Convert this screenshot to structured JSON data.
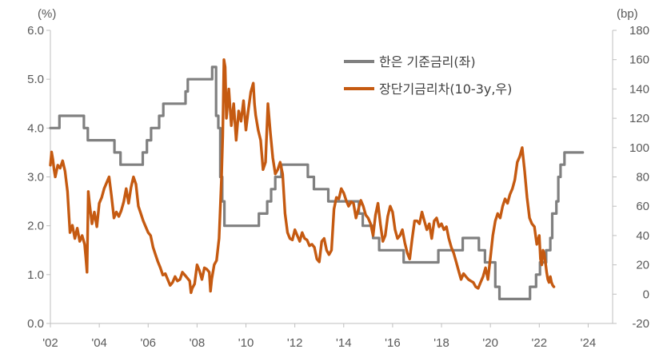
{
  "chart_data": {
    "type": "line",
    "y_left_unit": "(%)",
    "y_right_unit": "(bp)",
    "y_left_lim": [
      0.0,
      6.0
    ],
    "y_right_lim": [
      -20,
      180
    ],
    "y_left_ticks": [
      "0.0",
      "1.0",
      "2.0",
      "3.0",
      "4.0",
      "5.0",
      "6.0"
    ],
    "y_right_ticks": [
      "-20",
      "0",
      "20",
      "40",
      "60",
      "80",
      "100",
      "120",
      "140",
      "160",
      "180"
    ],
    "x_lim": [
      2002,
      2025
    ],
    "x_ticks": [
      {
        "year": 2002,
        "label": "'02"
      },
      {
        "year": 2004,
        "label": "'04"
      },
      {
        "year": 2006,
        "label": "'06"
      },
      {
        "year": 2008,
        "label": "'08"
      },
      {
        "year": 2010,
        "label": "'10"
      },
      {
        "year": 2012,
        "label": "'12"
      },
      {
        "year": 2014,
        "label": "'14"
      },
      {
        "year": 2016,
        "label": "'16"
      },
      {
        "year": 2018,
        "label": "'18"
      },
      {
        "year": 2020,
        "label": "'20"
      },
      {
        "year": 2022,
        "label": "'22"
      },
      {
        "year": 2024,
        "label": "'24"
      }
    ],
    "grid": false,
    "legend_position": "top-right",
    "series": [
      {
        "name": "한은 기준금리(좌)",
        "axis": "left",
        "color": "#808080",
        "step": true,
        "points": [
          [
            2002.0,
            4.0
          ],
          [
            2002.37,
            4.25
          ],
          [
            2003.37,
            4.0
          ],
          [
            2003.53,
            3.75
          ],
          [
            2004.62,
            3.5
          ],
          [
            2004.87,
            3.25
          ],
          [
            2005.78,
            3.5
          ],
          [
            2005.95,
            3.75
          ],
          [
            2006.12,
            4.0
          ],
          [
            2006.45,
            4.25
          ],
          [
            2006.62,
            4.5
          ],
          [
            2007.53,
            4.75
          ],
          [
            2007.62,
            5.0
          ],
          [
            2008.62,
            5.25
          ],
          [
            2008.78,
            4.25
          ],
          [
            2008.87,
            4.0
          ],
          [
            2008.95,
            3.0
          ],
          [
            2009.03,
            2.5
          ],
          [
            2009.12,
            2.0
          ],
          [
            2010.53,
            2.25
          ],
          [
            2010.87,
            2.5
          ],
          [
            2011.03,
            2.75
          ],
          [
            2011.2,
            3.0
          ],
          [
            2011.45,
            3.25
          ],
          [
            2012.53,
            3.0
          ],
          [
            2012.78,
            2.75
          ],
          [
            2013.37,
            2.5
          ],
          [
            2014.62,
            2.25
          ],
          [
            2014.78,
            2.0
          ],
          [
            2015.2,
            1.75
          ],
          [
            2015.45,
            1.5
          ],
          [
            2016.45,
            1.25
          ],
          [
            2017.87,
            1.5
          ],
          [
            2018.87,
            1.75
          ],
          [
            2019.53,
            1.5
          ],
          [
            2019.78,
            1.25
          ],
          [
            2020.2,
            0.75
          ],
          [
            2020.37,
            0.5
          ],
          [
            2021.62,
            0.75
          ],
          [
            2021.87,
            1.0
          ],
          [
            2022.03,
            1.25
          ],
          [
            2022.28,
            1.5
          ],
          [
            2022.45,
            1.75
          ],
          [
            2022.53,
            2.25
          ],
          [
            2022.7,
            2.5
          ],
          [
            2022.78,
            3.0
          ],
          [
            2022.87,
            3.25
          ],
          [
            2023.03,
            3.5
          ],
          [
            2023.78,
            3.5
          ]
        ]
      },
      {
        "name": "장단기금리차(10-3y,우)",
        "axis": "right",
        "color": "#C55A11",
        "step": false,
        "points": [
          [
            2002.0,
            88
          ],
          [
            2002.05,
            97
          ],
          [
            2002.1,
            92
          ],
          [
            2002.15,
            85
          ],
          [
            2002.2,
            80
          ],
          [
            2002.3,
            88
          ],
          [
            2002.4,
            86
          ],
          [
            2002.5,
            91
          ],
          [
            2002.6,
            84
          ],
          [
            2002.7,
            70
          ],
          [
            2002.8,
            42
          ],
          [
            2002.9,
            47
          ],
          [
            2003.0,
            38
          ],
          [
            2003.1,
            45
          ],
          [
            2003.2,
            36
          ],
          [
            2003.3,
            40
          ],
          [
            2003.4,
            34
          ],
          [
            2003.45,
            25
          ],
          [
            2003.5,
            15
          ],
          [
            2003.55,
            70
          ],
          [
            2003.6,
            62
          ],
          [
            2003.7,
            48
          ],
          [
            2003.8,
            56
          ],
          [
            2003.9,
            46
          ],
          [
            2004.0,
            62
          ],
          [
            2004.1,
            66
          ],
          [
            2004.2,
            72
          ],
          [
            2004.3,
            76
          ],
          [
            2004.4,
            80
          ],
          [
            2004.5,
            67
          ],
          [
            2004.6,
            52
          ],
          [
            2004.7,
            56
          ],
          [
            2004.8,
            53
          ],
          [
            2004.9,
            57
          ],
          [
            2005.0,
            63
          ],
          [
            2005.1,
            72
          ],
          [
            2005.2,
            62
          ],
          [
            2005.3,
            73
          ],
          [
            2005.4,
            80
          ],
          [
            2005.5,
            75
          ],
          [
            2005.6,
            60
          ],
          [
            2005.7,
            55
          ],
          [
            2005.8,
            50
          ],
          [
            2005.9,
            46
          ],
          [
            2006.0,
            42
          ],
          [
            2006.1,
            40
          ],
          [
            2006.2,
            32
          ],
          [
            2006.3,
            27
          ],
          [
            2006.4,
            22
          ],
          [
            2006.5,
            18
          ],
          [
            2006.6,
            13
          ],
          [
            2006.7,
            14
          ],
          [
            2006.8,
            10
          ],
          [
            2006.9,
            6
          ],
          [
            2007.0,
            8
          ],
          [
            2007.1,
            12
          ],
          [
            2007.2,
            9
          ],
          [
            2007.3,
            10
          ],
          [
            2007.4,
            15
          ],
          [
            2007.5,
            13
          ],
          [
            2007.6,
            11
          ],
          [
            2007.7,
            9
          ],
          [
            2007.75,
            1
          ],
          [
            2007.8,
            4
          ],
          [
            2007.9,
            7
          ],
          [
            2008.0,
            20
          ],
          [
            2008.1,
            16
          ],
          [
            2008.2,
            10
          ],
          [
            2008.3,
            18
          ],
          [
            2008.4,
            17
          ],
          [
            2008.5,
            15
          ],
          [
            2008.55,
            2
          ],
          [
            2008.6,
            10
          ],
          [
            2008.7,
            20
          ],
          [
            2008.8,
            23
          ],
          [
            2008.9,
            38
          ],
          [
            2009.0,
            80
          ],
          [
            2009.05,
            108
          ],
          [
            2009.1,
            160
          ],
          [
            2009.15,
            155
          ],
          [
            2009.2,
            120
          ],
          [
            2009.3,
            140
          ],
          [
            2009.4,
            115
          ],
          [
            2009.5,
            130
          ],
          [
            2009.6,
            105
          ],
          [
            2009.7,
            125
          ],
          [
            2009.8,
            118
          ],
          [
            2009.9,
            132
          ],
          [
            2010.0,
            112
          ],
          [
            2010.1,
            126
          ],
          [
            2010.2,
            138
          ],
          [
            2010.3,
            144
          ],
          [
            2010.35,
            130
          ],
          [
            2010.4,
            122
          ],
          [
            2010.5,
            112
          ],
          [
            2010.6,
            105
          ],
          [
            2010.7,
            85
          ],
          [
            2010.8,
            90
          ],
          [
            2010.9,
            130
          ],
          [
            2011.0,
            110
          ],
          [
            2011.1,
            93
          ],
          [
            2011.2,
            82
          ],
          [
            2011.3,
            85
          ],
          [
            2011.4,
            90
          ],
          [
            2011.5,
            82
          ],
          [
            2011.6,
            55
          ],
          [
            2011.7,
            42
          ],
          [
            2011.8,
            38
          ],
          [
            2011.9,
            37
          ],
          [
            2012.0,
            44
          ],
          [
            2012.1,
            40
          ],
          [
            2012.2,
            36
          ],
          [
            2012.3,
            42
          ],
          [
            2012.4,
            38
          ],
          [
            2012.5,
            37
          ],
          [
            2012.6,
            33
          ],
          [
            2012.7,
            34
          ],
          [
            2012.8,
            32
          ],
          [
            2012.9,
            24
          ],
          [
            2013.0,
            22
          ],
          [
            2013.1,
            36
          ],
          [
            2013.2,
            38
          ],
          [
            2013.3,
            30
          ],
          [
            2013.4,
            27
          ],
          [
            2013.5,
            30
          ],
          [
            2013.6,
            58
          ],
          [
            2013.7,
            66
          ],
          [
            2013.8,
            65
          ],
          [
            2013.9,
            72
          ],
          [
            2014.0,
            69
          ],
          [
            2014.1,
            64
          ],
          [
            2014.2,
            60
          ],
          [
            2014.3,
            63
          ],
          [
            2014.4,
            62
          ],
          [
            2014.5,
            52
          ],
          [
            2014.6,
            58
          ],
          [
            2014.7,
            64
          ],
          [
            2014.8,
            60
          ],
          [
            2014.9,
            54
          ],
          [
            2015.0,
            52
          ],
          [
            2015.1,
            48
          ],
          [
            2015.2,
            40
          ],
          [
            2015.3,
            54
          ],
          [
            2015.4,
            62
          ],
          [
            2015.5,
            48
          ],
          [
            2015.6,
            36
          ],
          [
            2015.7,
            40
          ],
          [
            2015.8,
            53
          ],
          [
            2015.9,
            60
          ],
          [
            2016.0,
            56
          ],
          [
            2016.1,
            44
          ],
          [
            2016.2,
            38
          ],
          [
            2016.3,
            40
          ],
          [
            2016.4,
            44
          ],
          [
            2016.5,
            35
          ],
          [
            2016.6,
            28
          ],
          [
            2016.7,
            24
          ],
          [
            2016.8,
            38
          ],
          [
            2016.9,
            50
          ],
          [
            2017.0,
            50
          ],
          [
            2017.1,
            48
          ],
          [
            2017.2,
            56
          ],
          [
            2017.3,
            50
          ],
          [
            2017.4,
            44
          ],
          [
            2017.5,
            48
          ],
          [
            2017.6,
            38
          ],
          [
            2017.7,
            50
          ],
          [
            2017.8,
            52
          ],
          [
            2017.9,
            46
          ],
          [
            2018.0,
            48
          ],
          [
            2018.1,
            44
          ],
          [
            2018.2,
            46
          ],
          [
            2018.3,
            38
          ],
          [
            2018.4,
            32
          ],
          [
            2018.5,
            28
          ],
          [
            2018.6,
            22
          ],
          [
            2018.7,
            16
          ],
          [
            2018.8,
            10
          ],
          [
            2018.9,
            14
          ],
          [
            2019.0,
            12
          ],
          [
            2019.1,
            10
          ],
          [
            2019.2,
            9
          ],
          [
            2019.3,
            8
          ],
          [
            2019.4,
            5
          ],
          [
            2019.5,
            4
          ],
          [
            2019.6,
            8
          ],
          [
            2019.7,
            12
          ],
          [
            2019.8,
            18
          ],
          [
            2019.9,
            10
          ],
          [
            2020.0,
            25
          ],
          [
            2020.1,
            40
          ],
          [
            2020.2,
            50
          ],
          [
            2020.3,
            55
          ],
          [
            2020.4,
            52
          ],
          [
            2020.5,
            60
          ],
          [
            2020.6,
            65
          ],
          [
            2020.7,
            62
          ],
          [
            2020.8,
            68
          ],
          [
            2020.9,
            72
          ],
          [
            2021.0,
            78
          ],
          [
            2021.1,
            90
          ],
          [
            2021.2,
            94
          ],
          [
            2021.3,
            100
          ],
          [
            2021.4,
            84
          ],
          [
            2021.5,
            66
          ],
          [
            2021.6,
            52
          ],
          [
            2021.7,
            48
          ],
          [
            2021.8,
            46
          ],
          [
            2021.9,
            34
          ],
          [
            2022.0,
            40
          ],
          [
            2022.05,
            24
          ],
          [
            2022.1,
            20
          ],
          [
            2022.15,
            30
          ],
          [
            2022.2,
            28
          ],
          [
            2022.25,
            22
          ],
          [
            2022.3,
            15
          ],
          [
            2022.35,
            10
          ],
          [
            2022.4,
            8
          ],
          [
            2022.45,
            12
          ],
          [
            2022.5,
            8
          ],
          [
            2022.55,
            6
          ],
          [
            2022.6,
            5
          ]
        ]
      }
    ]
  }
}
